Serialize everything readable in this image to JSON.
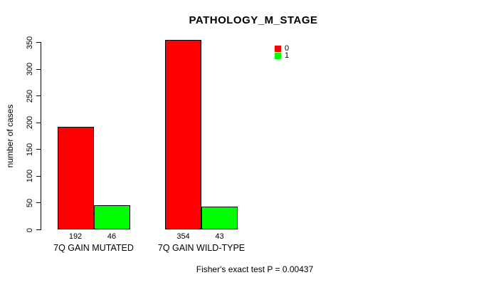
{
  "chart_data": {
    "type": "bar",
    "title": "PATHOLOGY_M_STAGE",
    "ylabel": "number of cases",
    "xlabel": "",
    "categories": [
      "7Q GAIN MUTATED",
      "7Q GAIN WILD-TYPE"
    ],
    "series": [
      {
        "name": "0",
        "color": "#FF0000",
        "values": [
          192,
          354
        ]
      },
      {
        "name": "1",
        "color": "#00FF00",
        "values": [
          46,
          43
        ]
      }
    ],
    "yticks": [
      0,
      50,
      100,
      150,
      200,
      250,
      300,
      350
    ],
    "ylim": [
      0,
      355
    ],
    "grid": false,
    "legend_position": "upper-right-outside-plot",
    "bar_border_color": "#000000",
    "annotation": "Fisher's exact test P = 0.00437"
  }
}
